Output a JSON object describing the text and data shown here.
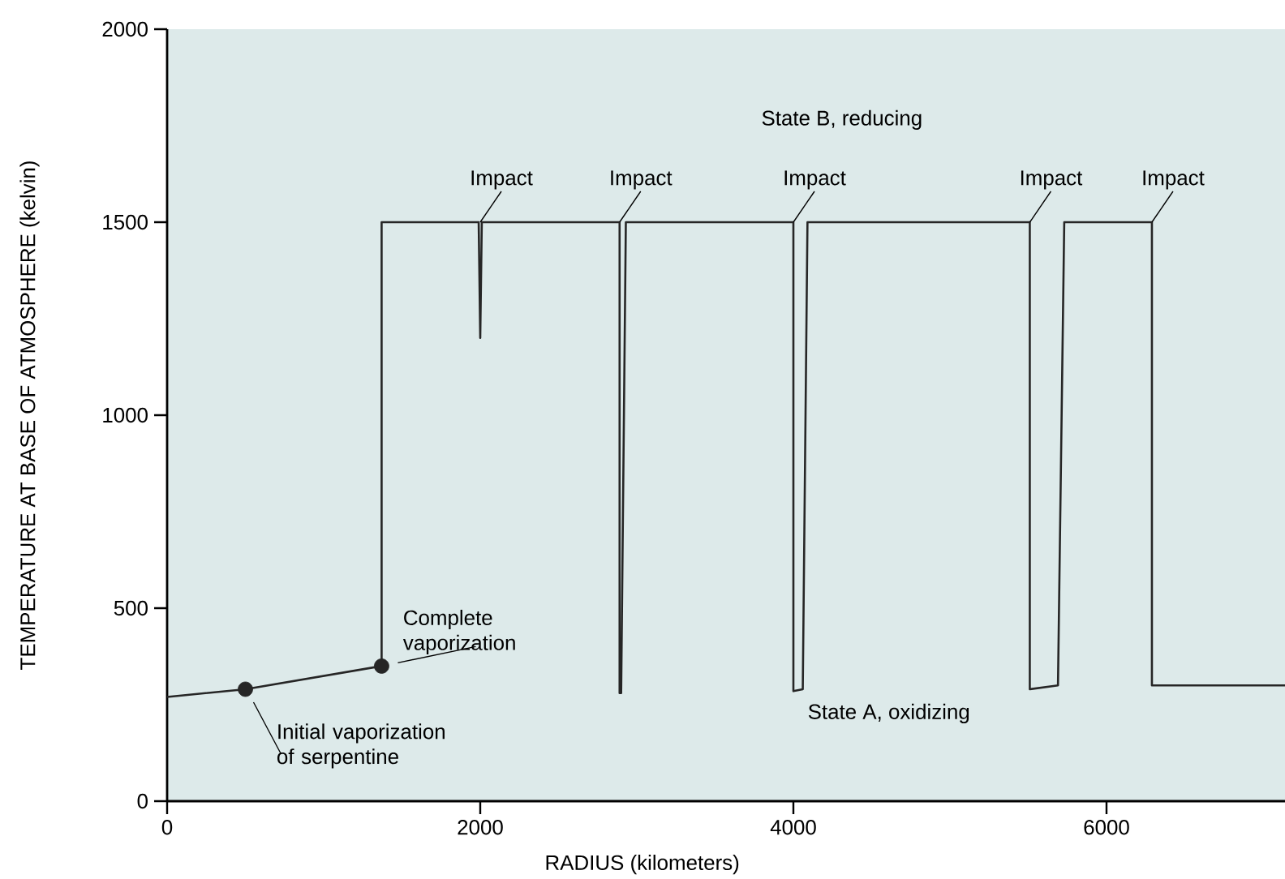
{
  "chart_data": {
    "type": "line",
    "xlabel": "RADIUS (kilometers)",
    "ylabel": "TEMPERATURE AT BASE OF ATMOSPHERE (kelvin)",
    "xlim": [
      0,
      7140
    ],
    "ylim": [
      0,
      2000
    ],
    "xticks": [
      0,
      2000,
      4000,
      6000
    ],
    "yticks": [
      0,
      500,
      1000,
      1500,
      2000
    ],
    "grid": false,
    "marker": "none",
    "line_style": "solid",
    "series": [
      {
        "color": "#262626",
        "x": [
          0,
          500,
          1370,
          1370,
          1990,
          2000,
          2010,
          2890,
          2890,
          2900,
          2930,
          4000,
          4000,
          4060,
          4090,
          5510,
          5510,
          5690,
          5730,
          6290,
          6290,
          7140
        ],
        "values": [
          270,
          290,
          350,
          1500,
          1500,
          1200,
          1500,
          1500,
          280,
          280,
          1500,
          1500,
          285,
          290,
          1500,
          1500,
          290,
          300,
          1500,
          1500,
          300,
          300
        ]
      },
      {
        "type": "scatter",
        "marker": "circle",
        "color": "#262626",
        "x": [
          500,
          1370
        ],
        "values": [
          290,
          350
        ]
      }
    ],
    "annotations": [
      {
        "text": "Impact",
        "x": 2000,
        "y": 1500
      },
      {
        "text": "Impact",
        "x": 2890,
        "y": 1500
      },
      {
        "text": "Impact",
        "x": 4000,
        "y": 1500
      },
      {
        "text": "Impact",
        "x": 5510,
        "y": 1500
      },
      {
        "text": "Impact",
        "x": 6290,
        "y": 1500
      },
      {
        "text": "Complete vaporization",
        "x": 1370,
        "y": 350
      },
      {
        "text": "Initial vaporization of serpentine",
        "x": 500,
        "y": 290
      },
      "State B, reducing",
      "State A, oxidizing"
    ]
  }
}
